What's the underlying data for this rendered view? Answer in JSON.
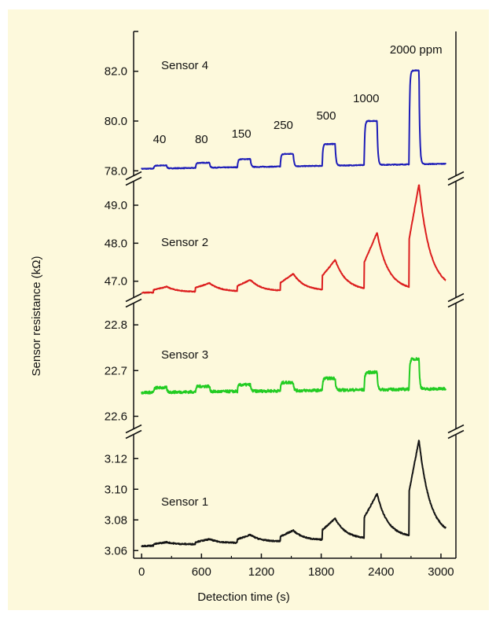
{
  "chart_data": {
    "type": "line",
    "xlabel": "Detection time (s)",
    "ylabel": "Sensor resistance (kΩ)",
    "xlim": [
      -80,
      3150
    ],
    "x_ticks": [
      0,
      600,
      1200,
      1800,
      2400,
      3000
    ],
    "x_tick_labels": [
      "0",
      "600",
      "1200",
      "1800",
      "2400",
      "3000"
    ],
    "grid": false,
    "concentration_labels": [
      {
        "text": "40",
        "x": 180
      },
      {
        "text": "80",
        "x": 600
      },
      {
        "text": "150",
        "x": 1000
      },
      {
        "text": "250",
        "x": 1420
      },
      {
        "text": "500",
        "x": 1850
      },
      {
        "text": "1000",
        "x": 2250
      },
      {
        "text": "2000 ppm",
        "x": 2750
      }
    ],
    "pulses": [
      {
        "start": 120,
        "end": 250
      },
      {
        "start": 540,
        "end": 680
      },
      {
        "start": 960,
        "end": 1090
      },
      {
        "start": 1390,
        "end": 1520
      },
      {
        "start": 1810,
        "end": 1940
      },
      {
        "start": 2230,
        "end": 2360
      },
      {
        "start": 2680,
        "end": 2780
      }
    ],
    "panels": [
      {
        "name": "Sensor 4",
        "color": "#1d1db8",
        "ylim": [
          77.85,
          83.6
        ],
        "y_ticks": [
          78.0,
          80.0,
          82.0
        ],
        "y_tick_labels": [
          "78.0",
          "80.0",
          "82.0"
        ],
        "baseline": 78.08,
        "baseline_drift": 0.2,
        "peaks": [
          78.2,
          78.28,
          78.4,
          78.58,
          78.95,
          79.85,
          81.85
        ],
        "shape": "square",
        "noise": 0.015
      },
      {
        "name": "Sensor 2",
        "color": "#dc1e1e",
        "ylim": [
          46.6,
          49.6
        ],
        "y_ticks": [
          47.0,
          48.0,
          49.0
        ],
        "y_tick_labels": [
          "47.0",
          "48.0",
          "49.0"
        ],
        "baseline": 46.7,
        "baseline_drift": 0.08,
        "peaks": [
          46.85,
          46.93,
          47.0,
          47.15,
          47.5,
          48.2,
          49.45
        ],
        "shape": "rise",
        "noise": 0.01
      },
      {
        "name": "Sensor 3",
        "color": "#22cc22",
        "ylim": [
          22.575,
          22.845
        ],
        "y_ticks": [
          22.6,
          22.7,
          22.8
        ],
        "y_tick_labels": [
          "22.6",
          "22.7",
          "22.8"
        ],
        "baseline": 22.652,
        "baseline_drift": 0.008,
        "peaks": [
          22.662,
          22.664,
          22.666,
          22.67,
          22.678,
          22.69,
          22.718
        ],
        "shape": "square",
        "noise": 0.003
      },
      {
        "name": "Sensor 1",
        "color": "#151515",
        "ylim": [
          3.055,
          3.135
        ],
        "y_ticks": [
          3.06,
          3.08,
          3.1,
          3.12
        ],
        "y_tick_labels": [
          "3.06",
          "3.08",
          "3.10",
          "3.12"
        ],
        "baseline": 3.063,
        "baseline_drift": 0.006,
        "peaks": [
          3.065,
          3.066,
          3.068,
          3.07,
          3.077,
          3.092,
          3.126
        ],
        "shape": "rise",
        "noise": 0.0004
      }
    ]
  }
}
